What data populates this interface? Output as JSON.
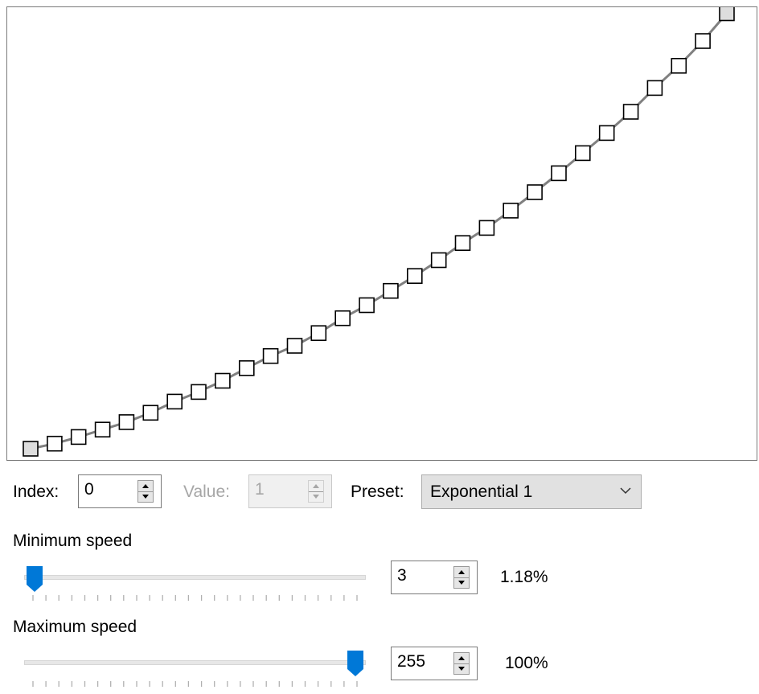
{
  "curve_editor": {
    "point_count": 30,
    "points": [
      1,
      3.7,
      7.3,
      11.3,
      15.3,
      20.3,
      26.3,
      31.5,
      37.5,
      44.3,
      50.8,
      56.3,
      63.1,
      71.1,
      78.1,
      85.8,
      93.8,
      102.3,
      111.5,
      119.6,
      128.9,
      138.8,
      149.0,
      159.8,
      170.6,
      182.0,
      194.8,
      206.7,
      220.0,
      234.9
    ],
    "selected_indices": [
      0,
      29
    ],
    "point_color": "#ffffff",
    "selected_point_color": "#dddddd",
    "line_color": "#808080"
  },
  "controls": {
    "index_label": "Index:",
    "index_value": "0",
    "value_label": "Value:",
    "value_value": "1",
    "preset_label": "Preset:",
    "preset_value": "Exponential 1"
  },
  "min_speed": {
    "label": "Minimum speed",
    "value": "3",
    "percent": "1.18%",
    "slider_fraction": 0.0
  },
  "max_speed": {
    "label": "Maximum speed",
    "value": "255",
    "percent": "100%",
    "slider_fraction": 1.0
  },
  "accent_color": "#0078d7"
}
